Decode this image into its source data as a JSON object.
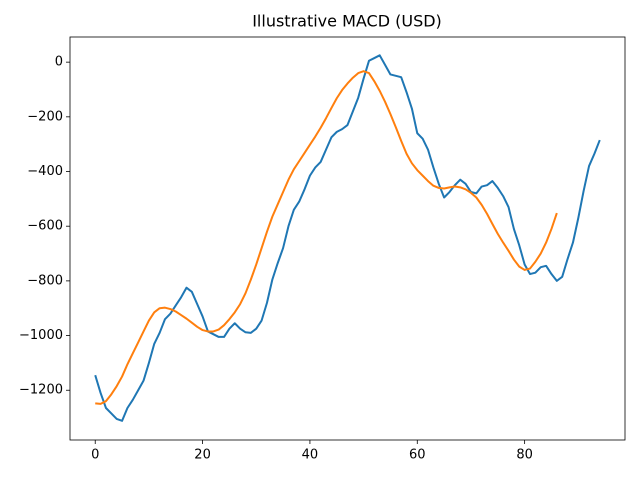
{
  "chart_data": {
    "type": "line",
    "title": "Illustrative MACD (USD)",
    "x": [
      0,
      1,
      2,
      3,
      4,
      5,
      6,
      7,
      8,
      9,
      10,
      11,
      12,
      13,
      14,
      15,
      16,
      17,
      18,
      19,
      20,
      21,
      22,
      23,
      24,
      25,
      26,
      27,
      28,
      29,
      30,
      31,
      32,
      33,
      34,
      35,
      36,
      37,
      38,
      39,
      40,
      41,
      42,
      43,
      44,
      45,
      46,
      47,
      48,
      49,
      50,
      51,
      52,
      53,
      54,
      55,
      56,
      57,
      58,
      59,
      60,
      61,
      62,
      63,
      64,
      65,
      66,
      67,
      68,
      69,
      70,
      71,
      72,
      73,
      74,
      75,
      76,
      77,
      78,
      79,
      80,
      81,
      82,
      83,
      84,
      85,
      86,
      87,
      88,
      89,
      90,
      91,
      92,
      93,
      94
    ],
    "series": [
      {
        "color": "#1f77b4",
        "values": [
          -1145,
          -1210,
          -1265,
          -1285,
          -1305,
          -1312,
          -1265,
          -1235,
          -1200,
          -1165,
          -1100,
          -1030,
          -990,
          -940,
          -920,
          -890,
          -860,
          -825,
          -840,
          -885,
          -930,
          -985,
          -995,
          -1005,
          -1005,
          -975,
          -955,
          -975,
          -988,
          -990,
          -975,
          -945,
          -880,
          -795,
          -735,
          -680,
          -600,
          -540,
          -510,
          -465,
          -415,
          -385,
          -365,
          -320,
          -275,
          -255,
          -245,
          -230,
          -180,
          -130,
          -60,
          5,
          15,
          25,
          -10,
          -45,
          -50,
          -55,
          -110,
          -170,
          -260,
          -280,
          -320,
          -385,
          -445,
          -495,
          -475,
          -450,
          -430,
          -445,
          -475,
          -480,
          -455,
          -450,
          -435,
          -460,
          -490,
          -530,
          -610,
          -670,
          -740,
          -775,
          -770,
          -750,
          -745,
          -775,
          -800,
          -785,
          -720,
          -660,
          -570,
          -470,
          -380,
          -335,
          -285
        ]
      },
      {
        "color": "#ff7f0e",
        "values": [
          -1248,
          -1250,
          -1240,
          -1215,
          -1185,
          -1150,
          -1105,
          -1065,
          -1025,
          -985,
          -945,
          -915,
          -900,
          -898,
          -903,
          -912,
          -925,
          -938,
          -953,
          -968,
          -980,
          -985,
          -985,
          -978,
          -962,
          -940,
          -915,
          -885,
          -845,
          -795,
          -740,
          -680,
          -620,
          -565,
          -520,
          -475,
          -430,
          -392,
          -362,
          -332,
          -302,
          -272,
          -240,
          -205,
          -168,
          -132,
          -102,
          -78,
          -57,
          -40,
          -33,
          -40,
          -70,
          -105,
          -145,
          -190,
          -238,
          -288,
          -335,
          -370,
          -395,
          -415,
          -435,
          -452,
          -460,
          -462,
          -458,
          -455,
          -458,
          -465,
          -478,
          -495,
          -522,
          -555,
          -592,
          -628,
          -660,
          -690,
          -722,
          -748,
          -760,
          -755,
          -730,
          -700,
          -660,
          -610,
          -552,
          null,
          null,
          null,
          null,
          null,
          null,
          null,
          null
        ]
      }
    ],
    "xlim": [
      -4.7,
      98.7
    ],
    "ylim": [
      -1382,
      92
    ],
    "xticks": [
      0,
      20,
      40,
      60,
      80
    ],
    "yticks": [
      {
        "value": -1200,
        "label": "−1200"
      },
      {
        "value": -1000,
        "label": "−1000"
      },
      {
        "value": -800,
        "label": "−800"
      },
      {
        "value": -600,
        "label": "−600"
      },
      {
        "value": -400,
        "label": "−400"
      },
      {
        "value": -200,
        "label": "−200"
      },
      0
    ]
  }
}
